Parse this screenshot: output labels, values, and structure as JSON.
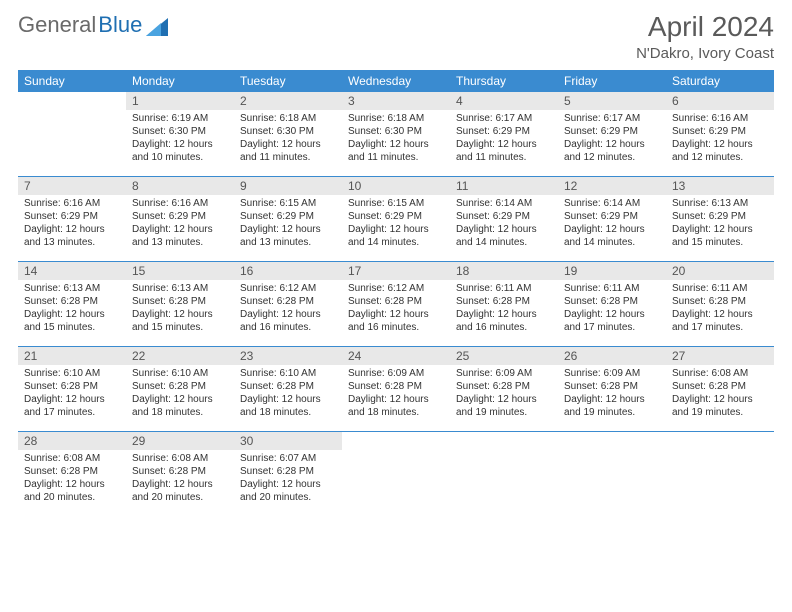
{
  "brand_gray": "General",
  "brand_blue": "Blue",
  "title": "April 2024",
  "location": "N'Dakro, Ivory Coast",
  "colors": {
    "header_bg": "#3a8bd0",
    "header_text": "#ffffff",
    "row_border": "#3a8bd0",
    "daynum_bg": "#e8e8e8",
    "text": "#333333",
    "brand_gray": "#6a6a6a",
    "brand_blue": "#1f6fb2",
    "page_bg": "#ffffff"
  },
  "weekdays": [
    "Sunday",
    "Monday",
    "Tuesday",
    "Wednesday",
    "Thursday",
    "Friday",
    "Saturday"
  ],
  "weeks": [
    [
      {
        "day": null
      },
      {
        "day": "1",
        "sunrise": "Sunrise: 6:19 AM",
        "sunset": "Sunset: 6:30 PM",
        "daylight": "Daylight: 12 hours and 10 minutes."
      },
      {
        "day": "2",
        "sunrise": "Sunrise: 6:18 AM",
        "sunset": "Sunset: 6:30 PM",
        "daylight": "Daylight: 12 hours and 11 minutes."
      },
      {
        "day": "3",
        "sunrise": "Sunrise: 6:18 AM",
        "sunset": "Sunset: 6:30 PM",
        "daylight": "Daylight: 12 hours and 11 minutes."
      },
      {
        "day": "4",
        "sunrise": "Sunrise: 6:17 AM",
        "sunset": "Sunset: 6:29 PM",
        "daylight": "Daylight: 12 hours and 11 minutes."
      },
      {
        "day": "5",
        "sunrise": "Sunrise: 6:17 AM",
        "sunset": "Sunset: 6:29 PM",
        "daylight": "Daylight: 12 hours and 12 minutes."
      },
      {
        "day": "6",
        "sunrise": "Sunrise: 6:16 AM",
        "sunset": "Sunset: 6:29 PM",
        "daylight": "Daylight: 12 hours and 12 minutes."
      }
    ],
    [
      {
        "day": "7",
        "sunrise": "Sunrise: 6:16 AM",
        "sunset": "Sunset: 6:29 PM",
        "daylight": "Daylight: 12 hours and 13 minutes."
      },
      {
        "day": "8",
        "sunrise": "Sunrise: 6:16 AM",
        "sunset": "Sunset: 6:29 PM",
        "daylight": "Daylight: 12 hours and 13 minutes."
      },
      {
        "day": "9",
        "sunrise": "Sunrise: 6:15 AM",
        "sunset": "Sunset: 6:29 PM",
        "daylight": "Daylight: 12 hours and 13 minutes."
      },
      {
        "day": "10",
        "sunrise": "Sunrise: 6:15 AM",
        "sunset": "Sunset: 6:29 PM",
        "daylight": "Daylight: 12 hours and 14 minutes."
      },
      {
        "day": "11",
        "sunrise": "Sunrise: 6:14 AM",
        "sunset": "Sunset: 6:29 PM",
        "daylight": "Daylight: 12 hours and 14 minutes."
      },
      {
        "day": "12",
        "sunrise": "Sunrise: 6:14 AM",
        "sunset": "Sunset: 6:29 PM",
        "daylight": "Daylight: 12 hours and 14 minutes."
      },
      {
        "day": "13",
        "sunrise": "Sunrise: 6:13 AM",
        "sunset": "Sunset: 6:29 PM",
        "daylight": "Daylight: 12 hours and 15 minutes."
      }
    ],
    [
      {
        "day": "14",
        "sunrise": "Sunrise: 6:13 AM",
        "sunset": "Sunset: 6:28 PM",
        "daylight": "Daylight: 12 hours and 15 minutes."
      },
      {
        "day": "15",
        "sunrise": "Sunrise: 6:13 AM",
        "sunset": "Sunset: 6:28 PM",
        "daylight": "Daylight: 12 hours and 15 minutes."
      },
      {
        "day": "16",
        "sunrise": "Sunrise: 6:12 AM",
        "sunset": "Sunset: 6:28 PM",
        "daylight": "Daylight: 12 hours and 16 minutes."
      },
      {
        "day": "17",
        "sunrise": "Sunrise: 6:12 AM",
        "sunset": "Sunset: 6:28 PM",
        "daylight": "Daylight: 12 hours and 16 minutes."
      },
      {
        "day": "18",
        "sunrise": "Sunrise: 6:11 AM",
        "sunset": "Sunset: 6:28 PM",
        "daylight": "Daylight: 12 hours and 16 minutes."
      },
      {
        "day": "19",
        "sunrise": "Sunrise: 6:11 AM",
        "sunset": "Sunset: 6:28 PM",
        "daylight": "Daylight: 12 hours and 17 minutes."
      },
      {
        "day": "20",
        "sunrise": "Sunrise: 6:11 AM",
        "sunset": "Sunset: 6:28 PM",
        "daylight": "Daylight: 12 hours and 17 minutes."
      }
    ],
    [
      {
        "day": "21",
        "sunrise": "Sunrise: 6:10 AM",
        "sunset": "Sunset: 6:28 PM",
        "daylight": "Daylight: 12 hours and 17 minutes."
      },
      {
        "day": "22",
        "sunrise": "Sunrise: 6:10 AM",
        "sunset": "Sunset: 6:28 PM",
        "daylight": "Daylight: 12 hours and 18 minutes."
      },
      {
        "day": "23",
        "sunrise": "Sunrise: 6:10 AM",
        "sunset": "Sunset: 6:28 PM",
        "daylight": "Daylight: 12 hours and 18 minutes."
      },
      {
        "day": "24",
        "sunrise": "Sunrise: 6:09 AM",
        "sunset": "Sunset: 6:28 PM",
        "daylight": "Daylight: 12 hours and 18 minutes."
      },
      {
        "day": "25",
        "sunrise": "Sunrise: 6:09 AM",
        "sunset": "Sunset: 6:28 PM",
        "daylight": "Daylight: 12 hours and 19 minutes."
      },
      {
        "day": "26",
        "sunrise": "Sunrise: 6:09 AM",
        "sunset": "Sunset: 6:28 PM",
        "daylight": "Daylight: 12 hours and 19 minutes."
      },
      {
        "day": "27",
        "sunrise": "Sunrise: 6:08 AM",
        "sunset": "Sunset: 6:28 PM",
        "daylight": "Daylight: 12 hours and 19 minutes."
      }
    ],
    [
      {
        "day": "28",
        "sunrise": "Sunrise: 6:08 AM",
        "sunset": "Sunset: 6:28 PM",
        "daylight": "Daylight: 12 hours and 20 minutes."
      },
      {
        "day": "29",
        "sunrise": "Sunrise: 6:08 AM",
        "sunset": "Sunset: 6:28 PM",
        "daylight": "Daylight: 12 hours and 20 minutes."
      },
      {
        "day": "30",
        "sunrise": "Sunrise: 6:07 AM",
        "sunset": "Sunset: 6:28 PM",
        "daylight": "Daylight: 12 hours and 20 minutes."
      },
      {
        "day": null
      },
      {
        "day": null
      },
      {
        "day": null
      },
      {
        "day": null
      }
    ]
  ]
}
